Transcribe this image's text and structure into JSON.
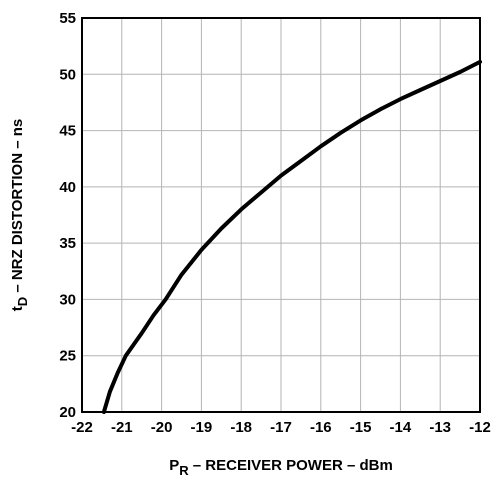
{
  "chart_data": {
    "type": "line",
    "title": "",
    "xlabel_prefix": "P",
    "xlabel_sub": "R",
    "xlabel_rest": " – RECEIVER POWER – dBm",
    "ylabel_prefix": "t",
    "ylabel_sub": "D",
    "ylabel_rest": " – NRZ DISTORTION – ns",
    "xlim": [
      -22,
      -12
    ],
    "ylim": [
      20,
      55
    ],
    "xticks": [
      -22,
      -21,
      -20,
      -19,
      -18,
      -17,
      -16,
      -15,
      -14,
      -13,
      -12
    ],
    "yticks": [
      20,
      25,
      30,
      35,
      40,
      45,
      50,
      55
    ],
    "xtick_labels": [
      "-22",
      "-21",
      "-20",
      "-19",
      "-18",
      "-17",
      "-16",
      "-15",
      "-14",
      "-13",
      "-12"
    ],
    "ytick_labels": [
      "20",
      "25",
      "30",
      "35",
      "40",
      "45",
      "50",
      "55"
    ],
    "grid": true,
    "line_color": "#000000",
    "grid_color": "#b4b4b4",
    "series": [
      {
        "x": [
          -21.45,
          -21.3,
          -21.1,
          -20.9,
          -20.7,
          -20.5,
          -20.2,
          -19.9,
          -19.5,
          -19.0,
          -18.5,
          -18.0,
          -17.5,
          -17.0,
          -16.5,
          -16.0,
          -15.5,
          -15.0,
          -14.5,
          -14.0,
          -13.5,
          -13.0,
          -12.5,
          -12.0
        ],
        "y": [
          20.0,
          21.8,
          23.5,
          25.0,
          26.0,
          27.0,
          28.6,
          30.0,
          32.2,
          34.4,
          36.3,
          38.0,
          39.5,
          41.0,
          42.3,
          43.6,
          44.8,
          45.9,
          46.9,
          47.8,
          48.6,
          49.4,
          50.2,
          51.1
        ]
      }
    ]
  }
}
